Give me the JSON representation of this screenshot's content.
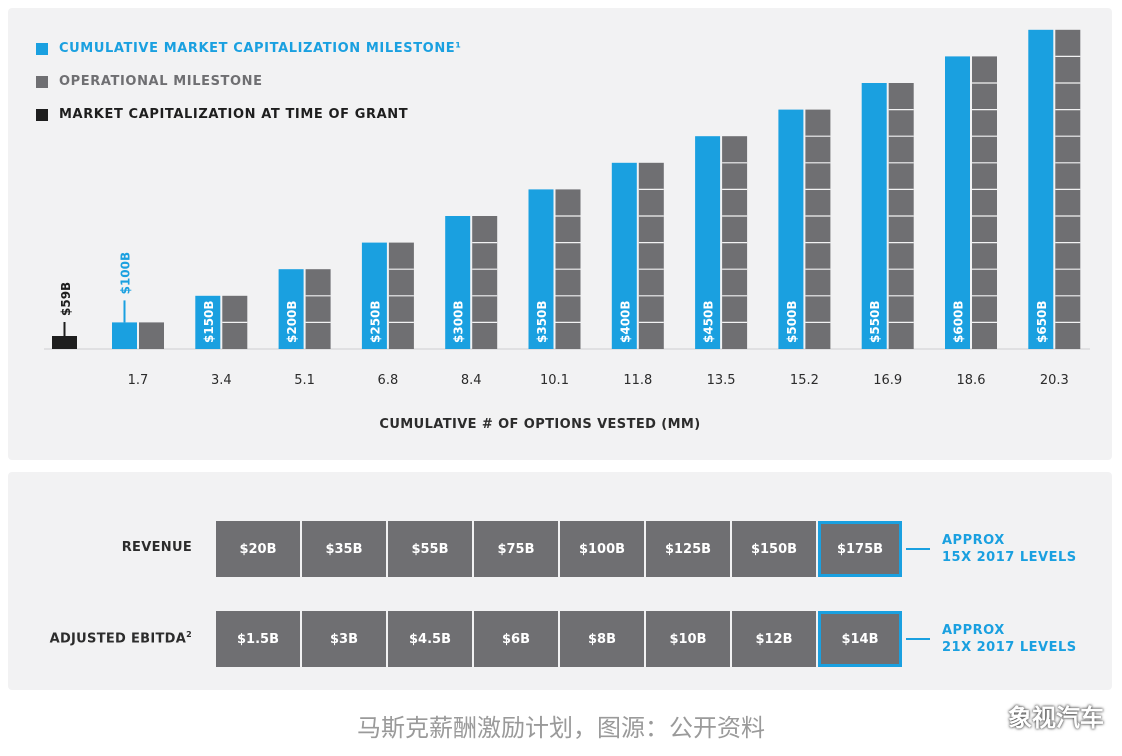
{
  "legend": [
    {
      "label": "CUMULATIVE MARKET CAPITALIZATION MILESTONE¹",
      "color": "#1aa0e0"
    },
    {
      "label": "OPERATIONAL MILESTONE",
      "color": "#6f6f72"
    },
    {
      "label": "MARKET CAPITALIZATION AT TIME OF GRANT",
      "color": "#1e1e1e"
    }
  ],
  "chart_data": {
    "type": "bar",
    "xlabel": "CUMULATIVE # OF OPTIONS VESTED (MM)",
    "grant": {
      "label": "$59B",
      "value": 59
    },
    "categories": [
      "1.7",
      "3.4",
      "5.1",
      "6.8",
      "8.4",
      "10.1",
      "11.8",
      "13.5",
      "15.2",
      "16.9",
      "18.6",
      "20.3"
    ],
    "market_cap_labels": [
      "$100B",
      "$150B",
      "$200B",
      "$250B",
      "$300B",
      "$350B",
      "$400B",
      "$450B",
      "$500B",
      "$550B",
      "$600B",
      "$650B"
    ],
    "market_cap_values": [
      100,
      150,
      200,
      250,
      300,
      350,
      400,
      450,
      500,
      550,
      600,
      650
    ],
    "operational_blocks": [
      1,
      2,
      3,
      4,
      5,
      6,
      7,
      8,
      9,
      10,
      11,
      12
    ],
    "colors": {
      "market_cap": "#1aa0e0",
      "operational": "#6f6f72",
      "grant": "#1e1e1e"
    }
  },
  "revenue": {
    "label": "REVENUE",
    "values": [
      "$20B",
      "$35B",
      "$55B",
      "$75B",
      "$100B",
      "$125B",
      "$150B",
      "$175B"
    ],
    "note": [
      "APPROX",
      "15X 2017 LEVELS"
    ]
  },
  "ebitda": {
    "label": "ADJUSTED EBITDA",
    "sup": "2",
    "values": [
      "$1.5B",
      "$3B",
      "$4.5B",
      "$6B",
      "$8B",
      "$10B",
      "$12B",
      "$14B"
    ],
    "note": [
      "APPROX",
      "21X 2017 LEVELS"
    ]
  },
  "caption": "马斯克薪酬激励计划，图源：公开资料",
  "watermark": "象视汽车"
}
